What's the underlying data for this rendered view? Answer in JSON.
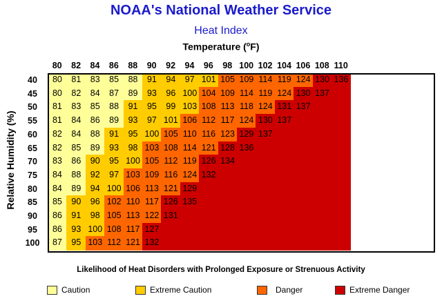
{
  "header": {
    "title": "NOAA's National Weather Service",
    "subtitle": "Heat Index",
    "axis_title_prefix": "Temperature (",
    "axis_title_sup": "o",
    "axis_title_suffix": "F)",
    "ylabel": "Relative Humidity (%)"
  },
  "legend": {
    "title": "Likelihood of Heat Disorders with Prolonged Exposure or Strenuous Activity",
    "items": [
      {
        "label": "Caution",
        "color": "#ffff99"
      },
      {
        "label": "Extreme Caution",
        "color": "#ffcc00"
      },
      {
        "label": "Danger",
        "color": "#ff6600"
      },
      {
        "label": "Extreme Danger",
        "color": "#cc0000"
      }
    ]
  },
  "chart_data": {
    "type": "table",
    "title": "Heat Index",
    "xlabel": "Temperature (°F)",
    "ylabel": "Relative Humidity (%)",
    "temperatures": [
      80,
      82,
      84,
      86,
      88,
      90,
      92,
      94,
      96,
      98,
      100,
      102,
      104,
      106,
      108,
      110
    ],
    "humidities": [
      40,
      45,
      50,
      55,
      60,
      65,
      70,
      75,
      80,
      85,
      90,
      95,
      100
    ],
    "values": [
      [
        80,
        81,
        83,
        85,
        88,
        91,
        94,
        97,
        101,
        105,
        109,
        114,
        119,
        124,
        130,
        136
      ],
      [
        80,
        82,
        84,
        87,
        89,
        93,
        96,
        100,
        104,
        109,
        114,
        119,
        124,
        130,
        137,
        null
      ],
      [
        81,
        83,
        85,
        88,
        91,
        95,
        99,
        103,
        108,
        113,
        118,
        124,
        131,
        137,
        null,
        null
      ],
      [
        81,
        84,
        86,
        89,
        93,
        97,
        101,
        106,
        112,
        117,
        124,
        130,
        137,
        null,
        null,
        null
      ],
      [
        82,
        84,
        88,
        91,
        95,
        100,
        105,
        110,
        116,
        123,
        129,
        137,
        null,
        null,
        null,
        null
      ],
      [
        82,
        85,
        89,
        93,
        98,
        103,
        108,
        114,
        121,
        128,
        136,
        null,
        null,
        null,
        null,
        null
      ],
      [
        83,
        86,
        90,
        95,
        100,
        105,
        112,
        119,
        126,
        134,
        null,
        null,
        null,
        null,
        null,
        null
      ],
      [
        84,
        88,
        92,
        97,
        103,
        109,
        116,
        124,
        132,
        null,
        null,
        null,
        null,
        null,
        null,
        null
      ],
      [
        84,
        89,
        94,
        100,
        106,
        113,
        121,
        129,
        null,
        null,
        null,
        null,
        null,
        null,
        null,
        null
      ],
      [
        85,
        90,
        96,
        102,
        110,
        117,
        126,
        135,
        null,
        null,
        null,
        null,
        null,
        null,
        null,
        null
      ],
      [
        86,
        91,
        98,
        105,
        113,
        122,
        131,
        null,
        null,
        null,
        null,
        null,
        null,
        null,
        null,
        null
      ],
      [
        86,
        93,
        100,
        108,
        117,
        127,
        null,
        null,
        null,
        null,
        null,
        null,
        null,
        null,
        null,
        null
      ],
      [
        87,
        95,
        103,
        112,
        121,
        132,
        null,
        null,
        null,
        null,
        null,
        null,
        null,
        null,
        null,
        null
      ]
    ],
    "categories": [
      [
        "C",
        "C",
        "C",
        "C",
        "C",
        "E",
        "E",
        "E",
        "E",
        "D",
        "D",
        "D",
        "D",
        "D",
        "X",
        "X"
      ],
      [
        "C",
        "C",
        "C",
        "C",
        "C",
        "E",
        "E",
        "E",
        "D",
        "D",
        "D",
        "D",
        "D",
        "X",
        "X",
        "X"
      ],
      [
        "C",
        "C",
        "C",
        "C",
        "E",
        "E",
        "E",
        "E",
        "D",
        "D",
        "D",
        "D",
        "X",
        "X",
        "X",
        "X"
      ],
      [
        "C",
        "C",
        "C",
        "C",
        "E",
        "E",
        "E",
        "D",
        "D",
        "D",
        "D",
        "X",
        "X",
        "X",
        "X",
        "X"
      ],
      [
        "C",
        "C",
        "C",
        "E",
        "E",
        "E",
        "D",
        "D",
        "D",
        "D",
        "X",
        "X",
        "X",
        "X",
        "X",
        "X"
      ],
      [
        "C",
        "C",
        "C",
        "E",
        "E",
        "D",
        "D",
        "D",
        "D",
        "X",
        "X",
        "X",
        "X",
        "X",
        "X",
        "X"
      ],
      [
        "C",
        "C",
        "E",
        "E",
        "E",
        "D",
        "D",
        "D",
        "X",
        "X",
        "X",
        "X",
        "X",
        "X",
        "X",
        "X"
      ],
      [
        "C",
        "C",
        "E",
        "E",
        "D",
        "D",
        "D",
        "D",
        "X",
        "X",
        "X",
        "X",
        "X",
        "X",
        "X",
        "X"
      ],
      [
        "C",
        "C",
        "E",
        "E",
        "D",
        "D",
        "D",
        "X",
        "X",
        "X",
        "X",
        "X",
        "X",
        "X",
        "X",
        "X"
      ],
      [
        "C",
        "E",
        "E",
        "D",
        "D",
        "D",
        "X",
        "X",
        "X",
        "X",
        "X",
        "X",
        "X",
        "X",
        "X",
        "X"
      ],
      [
        "C",
        "E",
        "E",
        "D",
        "D",
        "D",
        "X",
        "X",
        "X",
        "X",
        "X",
        "X",
        "X",
        "X",
        "X",
        "X"
      ],
      [
        "C",
        "E",
        "E",
        "D",
        "D",
        "X",
        "X",
        "X",
        "X",
        "X",
        "X",
        "X",
        "X",
        "X",
        "X",
        "X"
      ],
      [
        "C",
        "E",
        "D",
        "D",
        "D",
        "X",
        "X",
        "X",
        "X",
        "X",
        "X",
        "X",
        "X",
        "X",
        "X",
        "X"
      ]
    ],
    "category_colors": {
      "C": "#ffff99",
      "E": "#ffcc00",
      "D": "#ff6600",
      "X": "#cc0000"
    }
  }
}
